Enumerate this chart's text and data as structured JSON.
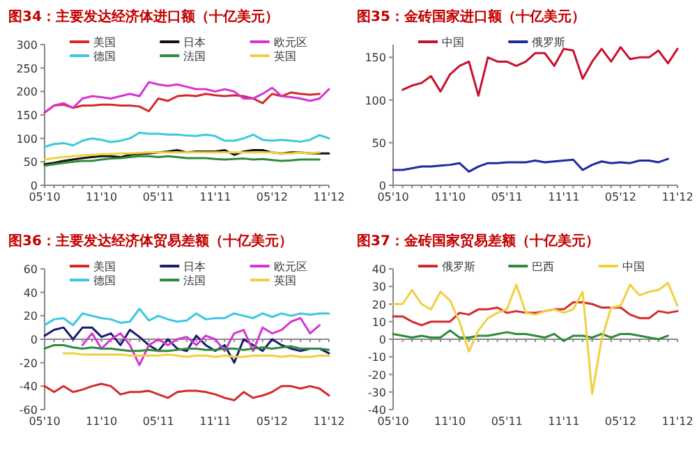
{
  "chart_data": [
    {
      "type": "line",
      "title": "图34：主要发达经济体进口额（十亿美元）",
      "categories": [
        "05'10",
        null,
        null,
        null,
        null,
        null,
        "11'10",
        null,
        null,
        null,
        null,
        null,
        "05'11",
        null,
        null,
        null,
        null,
        null,
        "11'11",
        null,
        null,
        null,
        null,
        null,
        "05'12",
        null,
        null,
        null,
        null,
        null,
        "11'12"
      ],
      "ylim": [
        0,
        300
      ],
      "yticks": [
        0,
        50,
        100,
        150,
        200,
        250,
        300
      ],
      "legend": "top",
      "series": [
        {
          "name": "美国",
          "color": "#d42a2a",
          "values": [
            155,
            170,
            172,
            165,
            170,
            170,
            172,
            172,
            170,
            170,
            168,
            158,
            185,
            180,
            190,
            192,
            190,
            195,
            192,
            190,
            192,
            190,
            185,
            175,
            195,
            190,
            198,
            195,
            193,
            195,
            null
          ]
        },
        {
          "name": "日本",
          "color": "#111111",
          "values": [
            45,
            48,
            52,
            55,
            58,
            60,
            62,
            62,
            60,
            65,
            67,
            68,
            70,
            72,
            75,
            70,
            72,
            72,
            72,
            75,
            65,
            72,
            75,
            75,
            70,
            68,
            70,
            70,
            68,
            68,
            68
          ]
        },
        {
          "name": "欧元区",
          "color": "#d633d6",
          "values": [
            155,
            170,
            175,
            165,
            185,
            190,
            188,
            185,
            190,
            195,
            190,
            220,
            215,
            212,
            215,
            210,
            205,
            205,
            200,
            205,
            200,
            185,
            185,
            195,
            208,
            190,
            188,
            185,
            180,
            185,
            205
          ]
        },
        {
          "name": "德国",
          "color": "#3cc8e0",
          "values": [
            82,
            88,
            90,
            85,
            95,
            100,
            97,
            92,
            95,
            100,
            112,
            110,
            110,
            108,
            108,
            106,
            105,
            108,
            105,
            95,
            95,
            100,
            108,
            97,
            95,
            97,
            95,
            93,
            97,
            107,
            100
          ]
        },
        {
          "name": "法国",
          "color": "#2e8b3a",
          "values": [
            42,
            45,
            48,
            50,
            52,
            52,
            55,
            57,
            58,
            60,
            62,
            62,
            60,
            62,
            60,
            58,
            58,
            58,
            56,
            55,
            56,
            57,
            55,
            56,
            54,
            52,
            53,
            55,
            55,
            55,
            null
          ]
        },
        {
          "name": "英国",
          "color": "#f0d040",
          "values": [
            55,
            58,
            60,
            62,
            64,
            65,
            66,
            67,
            68,
            68,
            69,
            70,
            70,
            70,
            70,
            70,
            70,
            70,
            70,
            70,
            70,
            70,
            70,
            70,
            70,
            68,
            68,
            70,
            68,
            70,
            null
          ]
        }
      ]
    },
    {
      "type": "line",
      "title": "图35：金砖国家进口额（十亿美元）",
      "categories": [
        "05'10",
        null,
        null,
        null,
        null,
        null,
        "11'10",
        null,
        null,
        null,
        null,
        null,
        "05'11",
        null,
        null,
        null,
        null,
        null,
        "11'11",
        null,
        null,
        null,
        null,
        null,
        "05'12",
        null,
        null,
        null,
        null,
        null,
        "11'12"
      ],
      "ylim": [
        0,
        165
      ],
      "yticks": [
        0,
        50,
        100,
        150
      ],
      "legend": "top",
      "series": [
        {
          "name": "中国",
          "color": "#c8102e",
          "values": [
            null,
            112,
            117,
            120,
            128,
            110,
            130,
            140,
            145,
            105,
            150,
            145,
            145,
            140,
            145,
            155,
            155,
            140,
            160,
            158,
            125,
            145,
            160,
            145,
            162,
            148,
            150,
            150,
            158,
            143,
            160
          ]
        },
        {
          "name": "俄罗斯",
          "color": "#1a2a9e",
          "values": [
            18,
            18,
            20,
            22,
            22,
            23,
            24,
            26,
            16,
            22,
            26,
            26,
            27,
            27,
            27,
            29,
            27,
            28,
            29,
            30,
            18,
            24,
            28,
            26,
            27,
            26,
            29,
            29,
            27,
            31,
            null
          ]
        }
      ]
    },
    {
      "type": "line",
      "title": "图36：主要发达经济体贸易差额（十亿美元）",
      "categories": [
        "05'10",
        null,
        null,
        null,
        null,
        null,
        "11'10",
        null,
        null,
        null,
        null,
        null,
        "05'11",
        null,
        null,
        null,
        null,
        null,
        "11'11",
        null,
        null,
        null,
        null,
        null,
        "05'12",
        null,
        null,
        null,
        null,
        null,
        "11'12"
      ],
      "ylim": [
        -60,
        60
      ],
      "yticks": [
        -60,
        -40,
        -20,
        0,
        20,
        40,
        60
      ],
      "legend": "top",
      "series": [
        {
          "name": "美国",
          "color": "#d42a2a",
          "values": [
            -40,
            -45,
            -40,
            -45,
            -43,
            -40,
            -38,
            -40,
            -47,
            -45,
            -45,
            -44,
            -47,
            -50,
            -45,
            -44,
            -44,
            -45,
            -47,
            -50,
            -52,
            -45,
            -50,
            -48,
            -45,
            -40,
            -40,
            -42,
            -40,
            -42,
            -48
          ]
        },
        {
          "name": "日本",
          "color": "#1a1a6e",
          "values": [
            3,
            8,
            10,
            0,
            10,
            10,
            2,
            5,
            -5,
            8,
            2,
            -5,
            -10,
            0,
            -8,
            -10,
            3,
            -5,
            -10,
            -5,
            -20,
            0,
            -5,
            -10,
            0,
            -5,
            -8,
            -10,
            -8,
            -8,
            -12
          ]
        },
        {
          "name": "欧元区",
          "color": "#d633d6",
          "values": [
            null,
            null,
            null,
            null,
            -5,
            5,
            -8,
            0,
            5,
            -5,
            -22,
            -5,
            0,
            -5,
            0,
            2,
            -5,
            3,
            0,
            -10,
            5,
            8,
            -10,
            10,
            5,
            8,
            15,
            18,
            5,
            12,
            null
          ]
        },
        {
          "name": "德国",
          "color": "#3cc8e0",
          "values": [
            12,
            17,
            18,
            12,
            22,
            20,
            18,
            17,
            14,
            15,
            26,
            16,
            20,
            17,
            15,
            16,
            22,
            17,
            18,
            18,
            22,
            20,
            18,
            22,
            19,
            22,
            20,
            22,
            21,
            22,
            22
          ]
        },
        {
          "name": "法国",
          "color": "#2e8b3a",
          "values": [
            -8,
            -5,
            -5,
            -7,
            -8,
            -7,
            -8,
            -8,
            -9,
            -10,
            -10,
            -9,
            -10,
            -10,
            -9,
            -8,
            -8,
            -9,
            -9,
            -8,
            -8,
            -9,
            -8,
            -7,
            -8,
            -7,
            -6,
            -8,
            -8,
            -8,
            -9
          ]
        },
        {
          "name": "英国",
          "color": "#f0d040",
          "values": [
            null,
            null,
            -12,
            -12,
            -13,
            -13,
            -13,
            -13,
            -13,
            -14,
            -14,
            -14,
            -14,
            -13,
            -14,
            -15,
            -14,
            -14,
            -15,
            -14,
            -15,
            -15,
            -14,
            -14,
            -14,
            -15,
            -14,
            -15,
            -15,
            -14,
            -14
          ]
        }
      ]
    },
    {
      "type": "line",
      "title": "图37：金砖国家贸易差额（十亿美元）",
      "categories": [
        "05'10",
        null,
        null,
        null,
        null,
        null,
        "11'10",
        null,
        null,
        null,
        null,
        null,
        "05'11",
        null,
        null,
        null,
        null,
        null,
        "11'11",
        null,
        null,
        null,
        null,
        null,
        "05'12",
        null,
        null,
        null,
        null,
        null,
        "11'12"
      ],
      "ylim": [
        -40,
        40
      ],
      "yticks": [
        -40,
        -30,
        -20,
        -10,
        0,
        10,
        20,
        30,
        40
      ],
      "legend": "top",
      "series": [
        {
          "name": "俄罗斯",
          "color": "#d42a2a",
          "values": [
            13,
            13,
            10,
            8,
            10,
            10,
            10,
            15,
            14,
            17,
            17,
            18,
            15,
            16,
            15,
            15,
            16,
            17,
            17,
            21,
            21,
            20,
            18,
            18,
            18,
            14,
            12,
            12,
            16,
            15,
            16
          ]
        },
        {
          "name": "巴西",
          "color": "#2e8b3a",
          "values": [
            3,
            2,
            1,
            2,
            1,
            1,
            5,
            1,
            1,
            2,
            2,
            3,
            4,
            3,
            3,
            2,
            1,
            3,
            -1,
            2,
            2,
            1,
            3,
            1,
            3,
            3,
            2,
            1,
            0,
            2,
            null
          ]
        },
        {
          "name": "中国",
          "color": "#f0d040",
          "values": [
            20,
            20,
            28,
            20,
            17,
            27,
            22,
            10,
            -7,
            5,
            12,
            15,
            17,
            31,
            15,
            14,
            16,
            17,
            15,
            17,
            27,
            -31,
            0,
            18,
            19,
            31,
            25,
            27,
            28,
            32,
            19
          ]
        }
      ]
    }
  ]
}
